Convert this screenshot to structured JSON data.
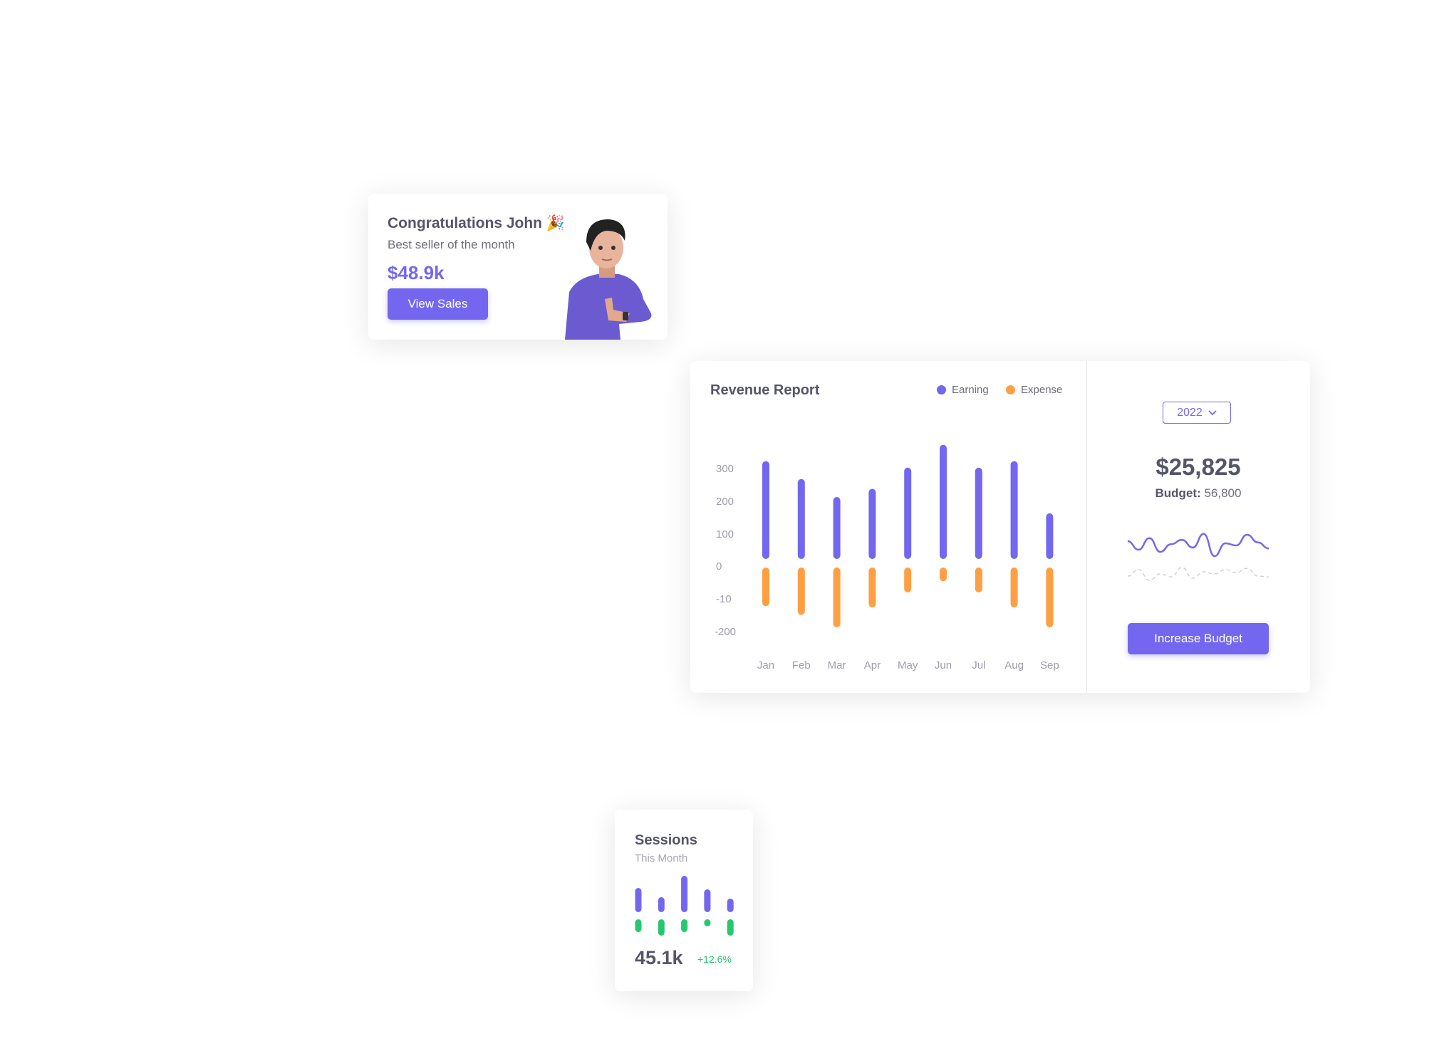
{
  "colors": {
    "primary": "#7367f0",
    "expense": "#ff9f43",
    "success": "#28c76f"
  },
  "congrats": {
    "title": "Congratulations John",
    "emoji": "🎉",
    "subtitle": "Best seller of the month",
    "amount": "$48.9k",
    "button": "View Sales"
  },
  "revenue": {
    "title": "Revenue Report",
    "legend": [
      "Earning",
      "Expense"
    ],
    "year": "2022",
    "total": "$25,825",
    "budget_label": "Budget:",
    "budget_value": "56,800",
    "button": "Increase Budget"
  },
  "chart_data": [
    {
      "type": "bar",
      "title": "Revenue Report",
      "categories": [
        "Jan",
        "Feb",
        "Mar",
        "Apr",
        "May",
        "Jun",
        "Jul",
        "Aug",
        "Sep"
      ],
      "y_tick_labels": [
        "300",
        "200",
        "100",
        "0",
        "-10",
        "-200"
      ],
      "series": [
        {
          "name": "Earning",
          "color": "#7367f0",
          "values": [
            300,
            245,
            190,
            215,
            280,
            350,
            280,
            300,
            140
          ]
        },
        {
          "name": "Expense",
          "color": "#ff9f43",
          "values": [
            -155,
            -190,
            -240,
            -160,
            -100,
            -55,
            -100,
            -160,
            -240
          ]
        }
      ],
      "grid": false,
      "legend": "top-right"
    },
    {
      "type": "line",
      "series": [
        {
          "style": "solid",
          "color": "#7367f0",
          "values": [
            55,
            35,
            62,
            30,
            48,
            58,
            40,
            72,
            20,
            50,
            45,
            70,
            52,
            38
          ]
        },
        {
          "style": "dashed",
          "color": "#d0d0d8",
          "values": [
            40,
            55,
            30,
            45,
            38,
            60,
            35,
            50,
            45,
            55,
            48,
            58,
            40,
            38
          ]
        }
      ]
    },
    {
      "type": "bar",
      "title": "Sessions",
      "series": [
        {
          "color": "#7367f0",
          "values": [
            34,
            21,
            51,
            32,
            19
          ]
        },
        {
          "color": "#28c76f",
          "values": [
            -18,
            -23,
            -18,
            -10,
            -23
          ]
        }
      ]
    }
  ],
  "sessions": {
    "title": "Sessions",
    "subtitle": "This Month",
    "value": "45.1k",
    "change": "+12.6%"
  }
}
